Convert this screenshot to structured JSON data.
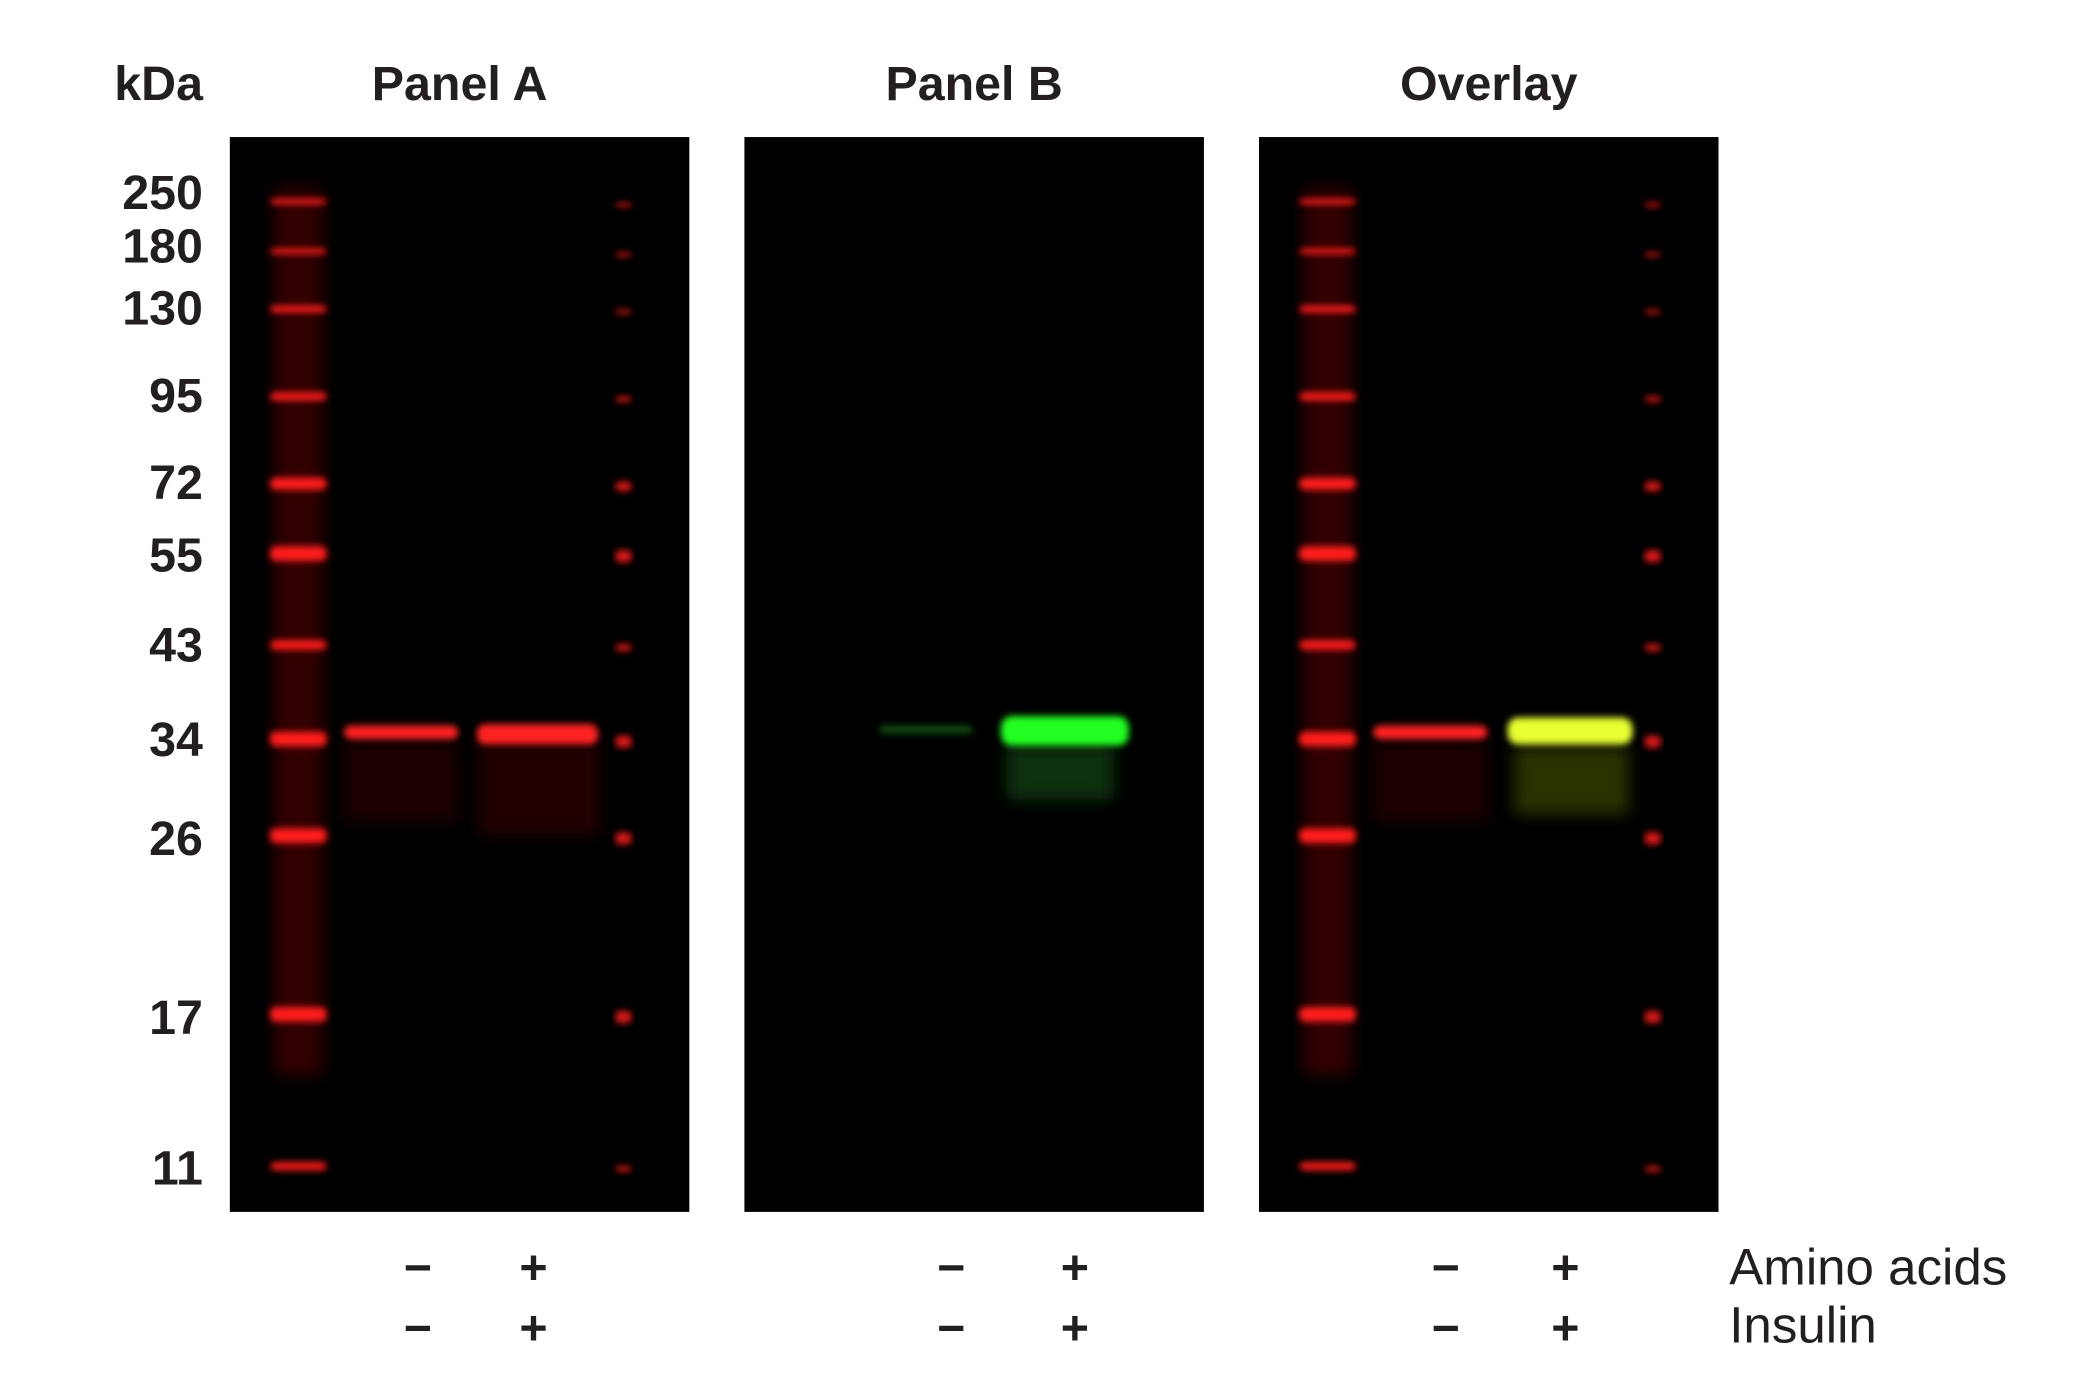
{
  "header": {
    "size_label": "kDa"
  },
  "markers": [
    250,
    180,
    130,
    95,
    72,
    55,
    43,
    34,
    26,
    17,
    11
  ],
  "panels": [
    {
      "title": "Panel A",
      "signs": [
        [
          "−",
          "+"
        ],
        [
          "−",
          "+"
        ]
      ]
    },
    {
      "title": "Panel B",
      "signs": [
        [
          "−",
          "+"
        ],
        [
          "−",
          "+"
        ]
      ]
    },
    {
      "title": "Overlay",
      "signs": [
        [
          "−",
          "+"
        ],
        [
          "−",
          "+"
        ]
      ]
    }
  ],
  "conditions": [
    "Amino acids",
    "Insulin"
  ]
}
